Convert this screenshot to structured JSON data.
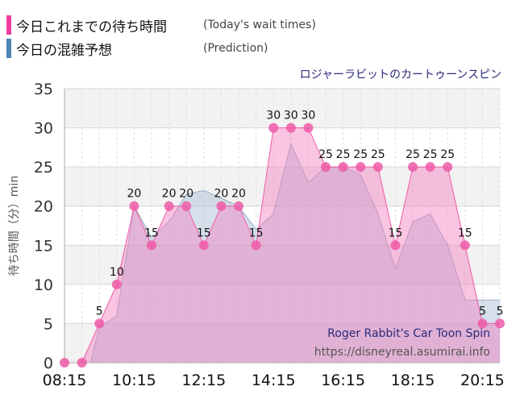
{
  "legend": {
    "items": [
      {
        "label_jp": "今日これまでの待ち時間",
        "label_en": "(Today's wait times)",
        "color": "#ee3f9b"
      },
      {
        "label_jp": "今日の混雑予想",
        "label_en": "(Prediction)",
        "color": "#4f84b8"
      }
    ]
  },
  "chart_data": {
    "type": "area",
    "title": "ロジャーラビットのカートゥーンスピン",
    "subtitle": "Roger Rabbit's Car Toon Spin",
    "source": "https://disneyreal.asumirai.info",
    "ylabel": "待ち時間（分）min",
    "ylim": [
      0,
      35
    ],
    "yticks": [
      0,
      5,
      10,
      15,
      20,
      25,
      30,
      35
    ],
    "x_range": [
      "08:15",
      "20:45"
    ],
    "xtick_labels": [
      "08:15",
      "10:15",
      "12:15",
      "14:15",
      "16:15",
      "18:15",
      "20:15"
    ],
    "grid": true,
    "series": [
      {
        "name": "今日これまでの待ち時間",
        "color": "#ee3f9b",
        "x": [
          "08:15",
          "08:45",
          "09:15",
          "09:45",
          "10:15",
          "10:45",
          "11:15",
          "11:45",
          "12:15",
          "12:45",
          "13:15",
          "13:45",
          "14:15",
          "14:45",
          "15:15",
          "15:45",
          "16:15",
          "16:45",
          "17:15",
          "17:45",
          "18:15",
          "18:45",
          "19:15",
          "19:45",
          "20:15",
          "20:45"
        ],
        "values": [
          0,
          0,
          5,
          10,
          20,
          15,
          20,
          20,
          15,
          20,
          20,
          15,
          30,
          30,
          30,
          25,
          25,
          25,
          25,
          15,
          25,
          25,
          25,
          15,
          5,
          5
        ]
      },
      {
        "name": "今日の混雑予想",
        "color": "#4f84b8",
        "x": [
          "08:15",
          "08:45",
          "09:00",
          "09:15",
          "09:45",
          "10:15",
          "10:45",
          "11:15",
          "11:45",
          "12:15",
          "12:45",
          "13:15",
          "13:45",
          "14:15",
          "14:45",
          "15:15",
          "15:45",
          "16:15",
          "16:45",
          "17:15",
          "17:45",
          "18:15",
          "18:45",
          "19:15",
          "19:45",
          "20:15",
          "20:45"
        ],
        "values": [
          0,
          0,
          0,
          4.5,
          6,
          20,
          16,
          18,
          21.5,
          22,
          21,
          20,
          17,
          19,
          28,
          23,
          25,
          25,
          24,
          19,
          12,
          18,
          19,
          15,
          8,
          8,
          8
        ]
      }
    ]
  }
}
